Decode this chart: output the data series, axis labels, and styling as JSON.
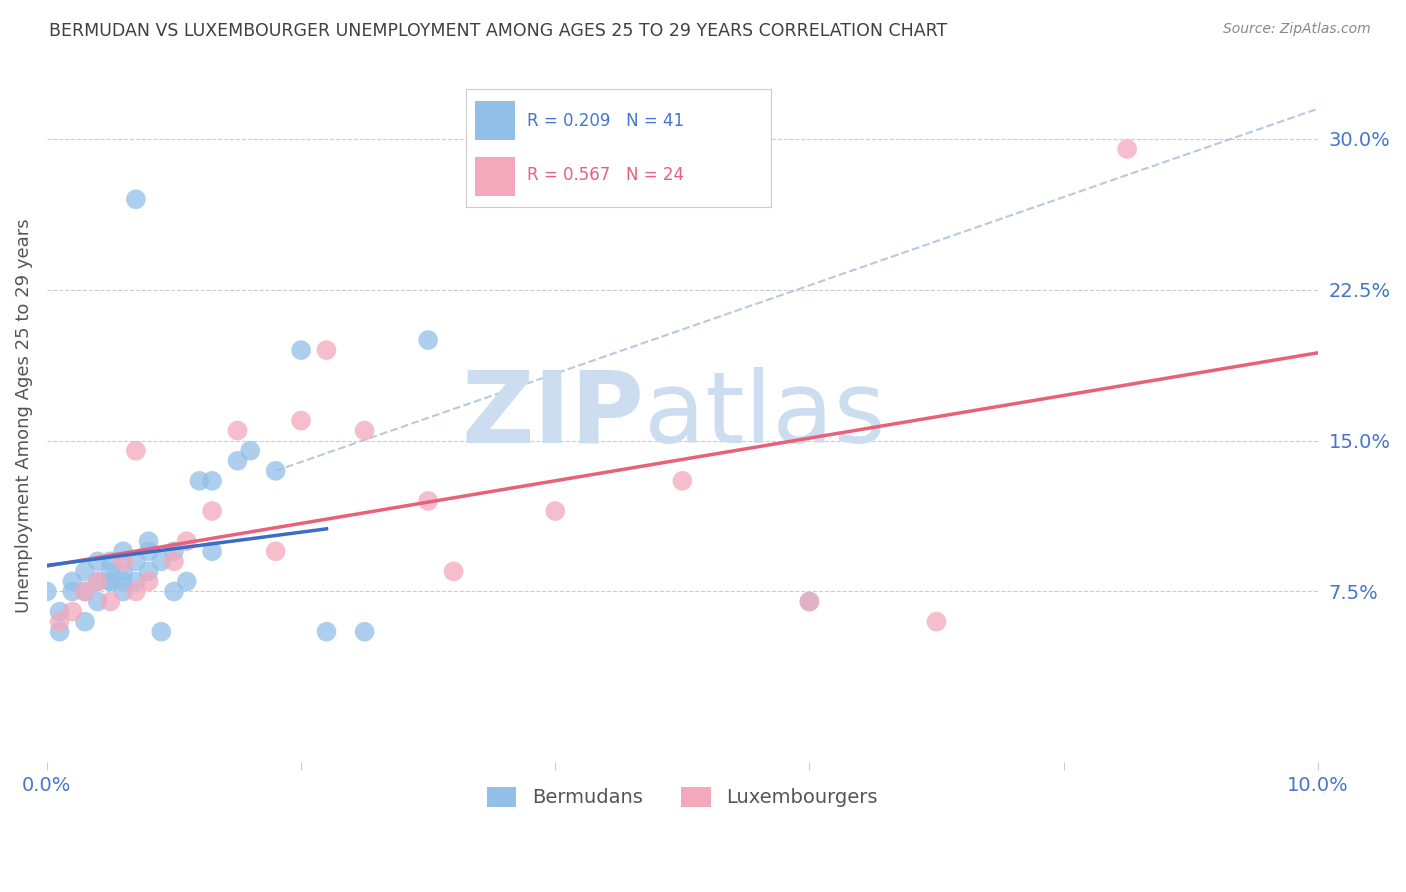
{
  "title": "BERMUDAN VS LUXEMBOURGER UNEMPLOYMENT AMONG AGES 25 TO 29 YEARS CORRELATION CHART",
  "source": "Source: ZipAtlas.com",
  "ylabel": "Unemployment Among Ages 25 to 29 years",
  "xlim": [
    0.0,
    0.1
  ],
  "ylim": [
    -0.01,
    0.335
  ],
  "yticks": [
    0.075,
    0.15,
    0.225,
    0.3
  ],
  "ytick_labels": [
    "7.5%",
    "15.0%",
    "22.5%",
    "30.0%"
  ],
  "xticks": [
    0.0,
    0.02,
    0.04,
    0.06,
    0.08,
    0.1
  ],
  "xtick_labels": [
    "0.0%",
    "",
    "",
    "",
    "",
    "10.0%"
  ],
  "bermudan_R": 0.209,
  "bermudan_N": 41,
  "luxembourger_R": 0.567,
  "luxembourger_N": 24,
  "bermudan_color": "#92c0e8",
  "luxembourger_color": "#f4a8bc",
  "bermudan_line_color": "#3b6cc7",
  "luxembourger_line_color": "#e8607a",
  "diag_line_color": "#b0c4de",
  "title_color": "#404040",
  "axis_label_color": "#555555",
  "tick_color": "#4477cc",
  "watermark_color": "#ccddf0",
  "legend_bermudan_label": "Bermudans",
  "legend_luxembourger_label": "Luxembourgers",
  "bermudan_x": [
    0.0,
    0.001,
    0.001,
    0.002,
    0.002,
    0.003,
    0.003,
    0.003,
    0.004,
    0.004,
    0.004,
    0.005,
    0.005,
    0.005,
    0.005,
    0.006,
    0.006,
    0.006,
    0.006,
    0.007,
    0.007,
    0.007,
    0.008,
    0.008,
    0.008,
    0.009,
    0.009,
    0.01,
    0.01,
    0.011,
    0.012,
    0.013,
    0.013,
    0.015,
    0.016,
    0.018,
    0.02,
    0.022,
    0.025,
    0.03,
    0.06
  ],
  "bermudan_y": [
    0.075,
    0.065,
    0.055,
    0.08,
    0.075,
    0.085,
    0.075,
    0.06,
    0.09,
    0.08,
    0.07,
    0.085,
    0.08,
    0.09,
    0.08,
    0.085,
    0.095,
    0.075,
    0.08,
    0.09,
    0.08,
    0.27,
    0.095,
    0.085,
    0.1,
    0.09,
    0.055,
    0.075,
    0.095,
    0.08,
    0.13,
    0.095,
    0.13,
    0.14,
    0.145,
    0.135,
    0.195,
    0.055,
    0.055,
    0.2,
    0.07
  ],
  "luxembourger_x": [
    0.001,
    0.002,
    0.003,
    0.004,
    0.005,
    0.006,
    0.007,
    0.007,
    0.008,
    0.01,
    0.011,
    0.013,
    0.015,
    0.018,
    0.02,
    0.022,
    0.025,
    0.03,
    0.032,
    0.04,
    0.05,
    0.06,
    0.07,
    0.085
  ],
  "luxembourger_y": [
    0.06,
    0.065,
    0.075,
    0.08,
    0.07,
    0.09,
    0.075,
    0.145,
    0.08,
    0.09,
    0.1,
    0.115,
    0.155,
    0.095,
    0.16,
    0.195,
    0.155,
    0.12,
    0.085,
    0.115,
    0.13,
    0.07,
    0.06,
    0.295
  ],
  "bermudan_line_x0": 0.0,
  "bermudan_line_x1": 0.022,
  "diag_line_x0": 0.018,
  "diag_line_x1": 0.1,
  "diag_line_y0": 0.135,
  "diag_line_y1": 0.315
}
